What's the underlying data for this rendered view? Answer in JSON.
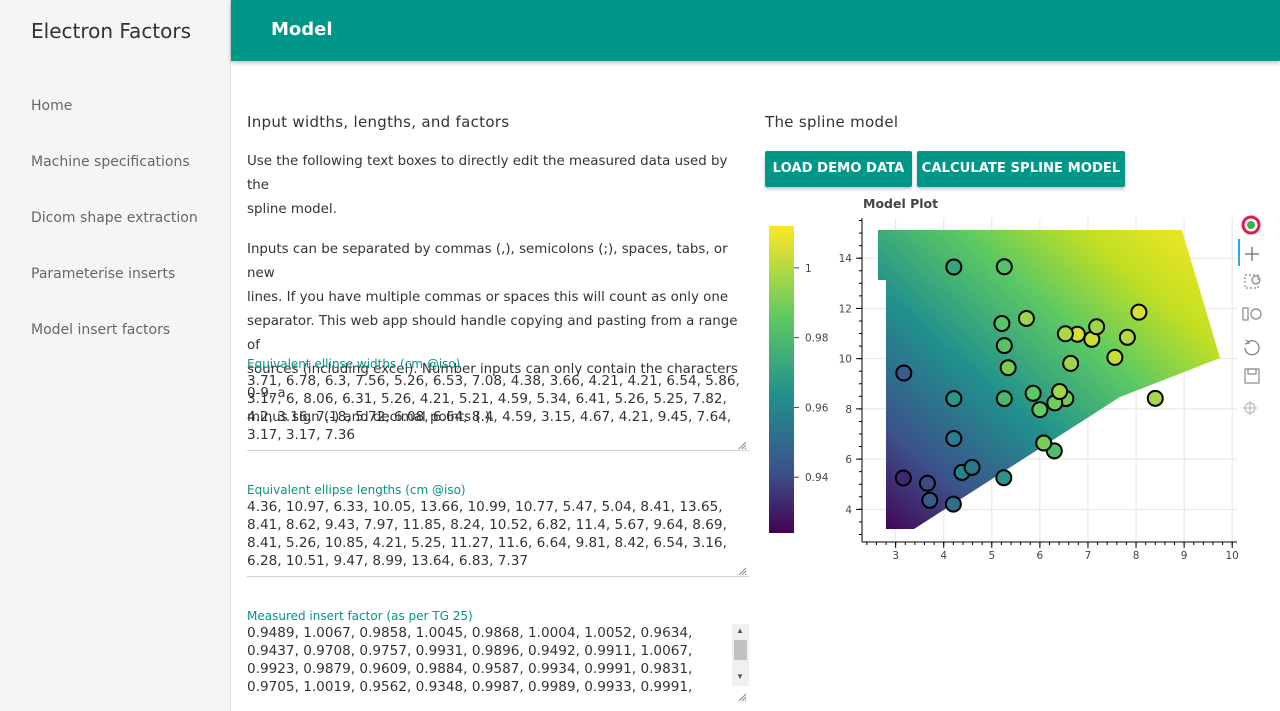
{
  "app": {
    "title": "Electron Factors"
  },
  "sidebar": {
    "items": [
      {
        "label": "Home"
      },
      {
        "label": "Machine specifications"
      },
      {
        "label": "Dicom shape extraction"
      },
      {
        "label": "Parameterise inserts"
      },
      {
        "label": "Model insert factors"
      }
    ]
  },
  "header": {
    "title": "Model"
  },
  "inputs": {
    "title": "Input widths, lengths, and factors",
    "intro_line1": "Use the following text boxes to directly edit the measured data used by the",
    "intro_line2": "spline model.",
    "help_line1": "Inputs can be separated by commas (,), semicolons (;), spaces, tabs, or new",
    "help_line2": "lines. If you have multiple commas or spaces this will count as only one",
    "help_line3": "separator. This web app should handle copying and pasting from a range of",
    "help_line4": "sources (including excel). Number inputs can only contain the characters 0-9, a",
    "help_line5": "minus sign (-) and decimal points (.).",
    "widths": {
      "label": "Equivalent ellipse widths (cm @iso)",
      "value": "3.71, 6.78, 6.3, 7.56, 5.26, 6.53, 7.08, 4.38, 3.66, 4.21, 4.21, 6.54, 5.86, 3.17, 6, 8.06, 6.31, 5.26, 4.21, 5.21, 4.59, 5.34, 6.41, 5.26, 5.25, 7.82, 4.2, 3.16, 7.18, 5.72, 6.08, 6.64, 8.4, 4.59, 3.15, 4.67, 4.21, 9.45, 7.64, 3.17, 3.17, 7.36"
    },
    "lengths": {
      "label": "Equivalent ellipse lengths (cm @iso)",
      "value": "4.36, 10.97, 6.33, 10.05, 13.66, 10.99, 10.77, 5.47, 5.04, 8.41, 13.65, 8.41, 8.62, 9.43, 7.97, 11.85, 8.24, 10.52, 6.82, 11.4, 5.67, 9.64, 8.69, 8.41, 5.26, 10.85, 4.21, 5.25, 11.27, 11.6, 6.64, 9.81, 8.42, 6.54, 3.16, 6.28, 10.51, 9.47, 8.99, 13.64, 6.83, 7.37"
    },
    "factors": {
      "label": "Measured insert factor (as per TG 25)",
      "line1": "0.9489, 1.0067, 0.9858, 1.0045, 0.9868, 1.0004, 1.0052, 0.9634,",
      "line2": "0.9437, 0.9708, 0.9757, 0.9931, 0.9896, 0.9492, 0.9911, 1.0067,",
      "line3": "0.9923, 0.9879, 0.9609, 0.9884, 0.9587, 0.9934, 0.9991, 0.9831,",
      "line4": "0.9705, 1.0019, 0.9562, 0.9348, 0.9987, 0.9989, 0.9933, 0.9991,"
    }
  },
  "model": {
    "title": "The spline model",
    "load_button": "LOAD DEMO DATA",
    "calc_button": "CALCULATE SPLINE MODEL"
  },
  "chart_data": {
    "type": "scatter",
    "title": "Model Plot",
    "xlabel": "",
    "ylabel": "",
    "xlim": [
      2.3,
      10.1
    ],
    "ylim": [
      2.7,
      15.6
    ],
    "x_ticks": [
      "3",
      "4",
      "5",
      "6",
      "7",
      "8",
      "9",
      "10"
    ],
    "y_ticks": [
      "4",
      "6",
      "8",
      "10",
      "12",
      "14"
    ],
    "colorbar": {
      "range": [
        0.924,
        1.012
      ],
      "ticks": [
        "0.94",
        "0.96",
        "0.98",
        "1"
      ]
    },
    "grid": true,
    "background": "spline surface heatmap (viridis)",
    "points": [
      {
        "x": 3.71,
        "y": 4.36,
        "z": 0.9489
      },
      {
        "x": 6.78,
        "y": 10.97,
        "z": 1.0067
      },
      {
        "x": 6.3,
        "y": 6.33,
        "z": 0.9858
      },
      {
        "x": 7.56,
        "y": 10.05,
        "z": 1.0045
      },
      {
        "x": 5.26,
        "y": 13.66,
        "z": 0.9868
      },
      {
        "x": 6.53,
        "y": 10.99,
        "z": 1.0004
      },
      {
        "x": 7.08,
        "y": 10.77,
        "z": 1.0052
      },
      {
        "x": 4.38,
        "y": 5.47,
        "z": 0.9634
      },
      {
        "x": 3.66,
        "y": 5.04,
        "z": 0.9437
      },
      {
        "x": 4.21,
        "y": 8.41,
        "z": 0.9708
      },
      {
        "x": 4.21,
        "y": 13.65,
        "z": 0.9757
      },
      {
        "x": 6.54,
        "y": 8.41,
        "z": 0.9931
      },
      {
        "x": 5.86,
        "y": 8.62,
        "z": 0.9896
      },
      {
        "x": 3.17,
        "y": 9.43,
        "z": 0.9492
      },
      {
        "x": 6,
        "y": 7.97,
        "z": 0.9911
      },
      {
        "x": 8.06,
        "y": 11.85,
        "z": 1.0067
      },
      {
        "x": 6.31,
        "y": 8.24,
        "z": 0.9923
      },
      {
        "x": 5.26,
        "y": 10.52,
        "z": 0.9879
      },
      {
        "x": 4.21,
        "y": 6.82,
        "z": 0.9609
      },
      {
        "x": 5.21,
        "y": 11.4,
        "z": 0.9884
      },
      {
        "x": 4.59,
        "y": 5.67,
        "z": 0.9587
      },
      {
        "x": 5.34,
        "y": 9.64,
        "z": 0.9934
      },
      {
        "x": 6.41,
        "y": 8.69,
        "z": 0.9991
      },
      {
        "x": 5.26,
        "y": 8.41,
        "z": 0.9831
      },
      {
        "x": 5.25,
        "y": 5.26,
        "z": 0.9705
      },
      {
        "x": 7.82,
        "y": 10.85,
        "z": 1.0019
      },
      {
        "x": 4.2,
        "y": 4.21,
        "z": 0.9562
      },
      {
        "x": 3.16,
        "y": 5.25,
        "z": 0.9348
      },
      {
        "x": 7.18,
        "y": 11.27,
        "z": 0.9987
      },
      {
        "x": 5.72,
        "y": 11.6,
        "z": 0.9989
      },
      {
        "x": 6.08,
        "y": 6.64,
        "z": 0.9933
      },
      {
        "x": 6.64,
        "y": 9.81,
        "z": 0.9991
      },
      {
        "x": 8.4,
        "y": 8.42,
        "z": 1.0
      }
    ]
  }
}
